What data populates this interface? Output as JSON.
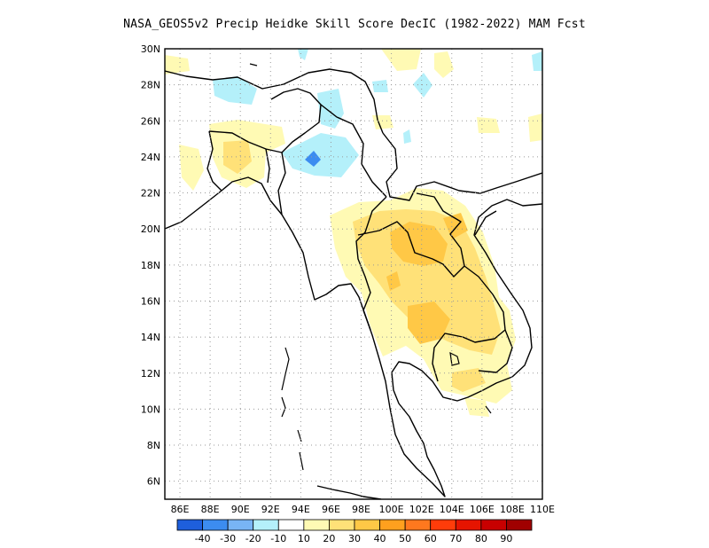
{
  "title": "NASA_GEOS5v2 Precip Heidke Skill Score DecIC (1982-2022) MAM Fcst",
  "map": {
    "lon_range": [
      85,
      110
    ],
    "lat_range": [
      5,
      30
    ],
    "lon_ticks": [
      "86E",
      "88E",
      "90E",
      "92E",
      "94E",
      "96E",
      "98E",
      "100E",
      "102E",
      "104E",
      "106E",
      "108E",
      "110E"
    ],
    "lat_ticks": [
      "6N",
      "8N",
      "10N",
      "12N",
      "14N",
      "16N",
      "18N",
      "20N",
      "22N",
      "24N",
      "26N",
      "28N",
      "30N"
    ],
    "grid": "dotted"
  },
  "colorbar": {
    "colors": [
      "#1e5fdc",
      "#3c8cf0",
      "#78b4f5",
      "#b4f0fa",
      "#ffffff",
      "#fffab4",
      "#ffe178",
      "#ffc846",
      "#ffa01e",
      "#ff781e",
      "#ff3c0a",
      "#e61400",
      "#c80000",
      "#a00000"
    ],
    "labels": [
      "-40",
      "-30",
      "-20",
      "-10",
      "10",
      "20",
      "30",
      "40",
      "50",
      "60",
      "70",
      "80",
      "90"
    ]
  }
}
